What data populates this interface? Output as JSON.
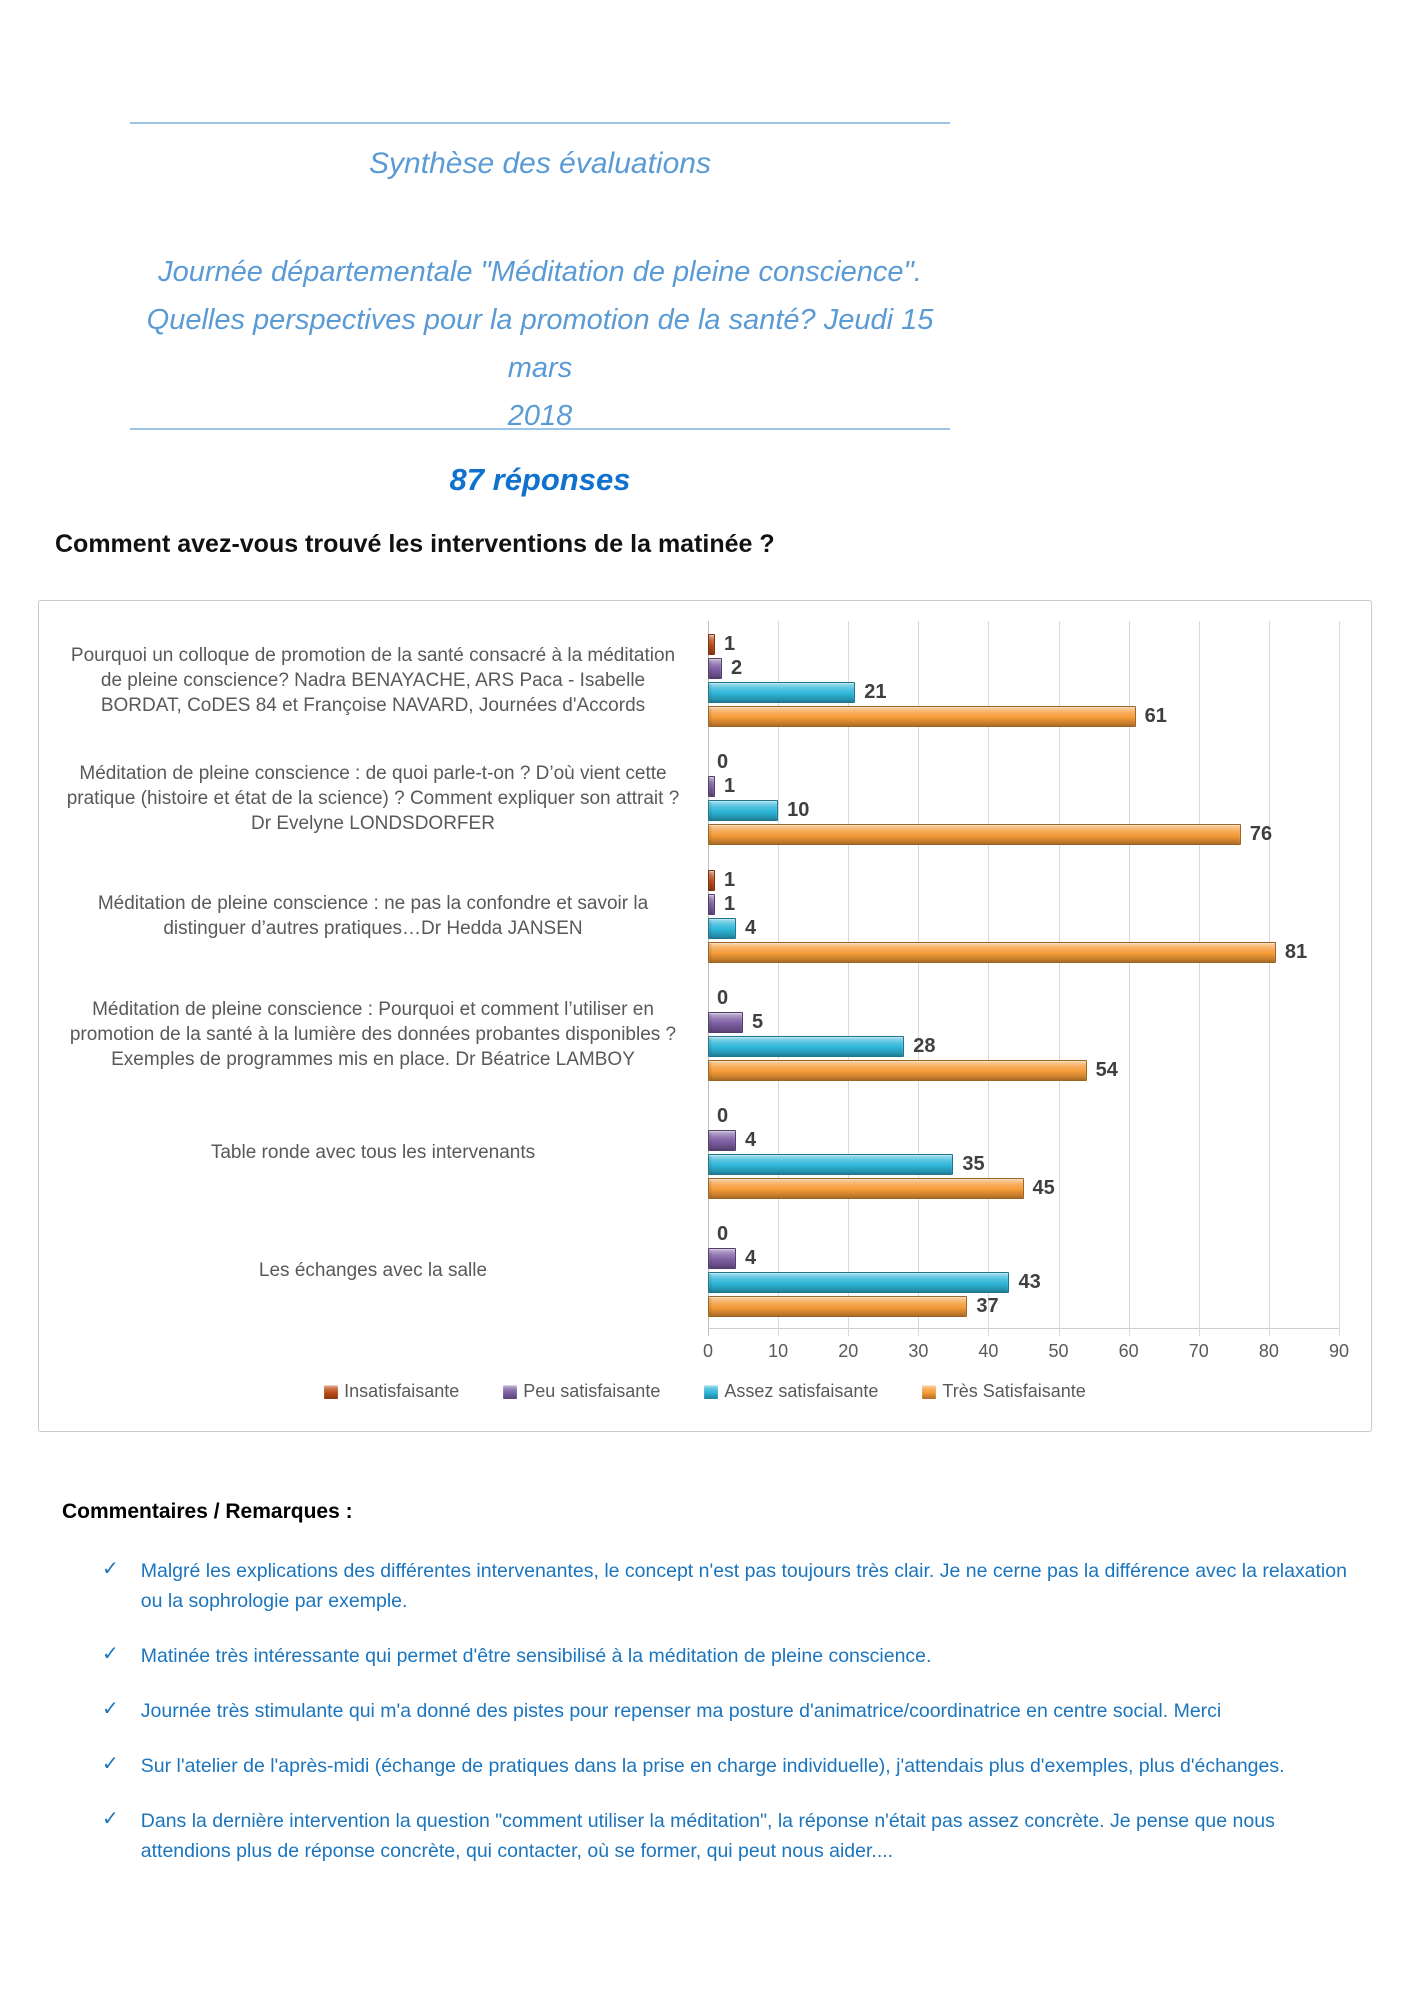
{
  "header": {
    "title": "Synthèse des évaluations",
    "subtitle_line1": "Journée départementale \"Méditation de pleine conscience\".",
    "subtitle_line2": "Quelles perspectives pour la promotion de la santé? Jeudi 15 mars",
    "subtitle_line3": "2018",
    "responses_label": "87 réponses",
    "question": "Comment avez-vous trouvé les interventions de la matinée ?"
  },
  "colors": {
    "title_blue": "#5B9BD5",
    "responses_blue": "#1072CE",
    "comment_blue": "#1B75BE",
    "divider_blue": "#9DC3E6",
    "category_gray": "#595959",
    "value_label_gray": "#3F3F3F"
  },
  "chart_data": {
    "type": "bar",
    "orientation": "horizontal",
    "title": "",
    "xlabel": "",
    "ylabel": "",
    "xlim": [
      0,
      90
    ],
    "xticks": [
      0,
      10,
      20,
      30,
      40,
      50,
      60,
      70,
      80,
      90
    ],
    "grid": true,
    "legend_position": "bottom",
    "categories": [
      "Pourquoi un colloque de promotion de la santé consacré à la méditation de pleine conscience? Nadra BENAYACHE,  ARS Paca - Isabelle BORDAT, CoDES 84 et Françoise NAVARD, Journées d'Accords",
      "Méditation de pleine conscience : de quoi parle-t-on ? D’où vient cette pratique (histoire et état de la science) ? Comment expliquer son attrait ? Dr Evelyne LONDSDORFER",
      "Méditation de pleine conscience : ne pas la confondre et savoir la distinguer d’autres pratiques…Dr Hedda JANSEN",
      "Méditation de pleine conscience : Pourquoi et comment l’utiliser en promotion de la santé à la lumière des données probantes disponibles ? Exemples de programmes mis en place. Dr Béatrice LAMBOY",
      "Table ronde avec tous les intervenants",
      "Les échanges avec la salle"
    ],
    "series": [
      {
        "name": "Insatisfaisante",
        "color": "#BE4B16",
        "values": [
          1,
          0,
          1,
          0,
          0,
          0
        ]
      },
      {
        "name": "Peu satisfaisante",
        "color": "#7E5FA4",
        "values": [
          2,
          1,
          1,
          5,
          4,
          4
        ]
      },
      {
        "name": "Assez satisfaisante",
        "color": "#2FB6D9",
        "values": [
          21,
          10,
          4,
          28,
          35,
          43
        ]
      },
      {
        "name": "Très Satisfaisante",
        "color": "#F59B38",
        "values": [
          61,
          76,
          81,
          54,
          45,
          37
        ]
      }
    ]
  },
  "comments": {
    "heading": "Commentaires / Remarques :",
    "check_icon": "✓",
    "items": [
      "Malgré les explications des différentes intervenantes, le concept n'est pas toujours très clair.  Je ne cerne pas la différence avec la relaxation ou la sophrologie par exemple.",
      "Matinée très intéressante qui permet d'être sensibilisé à la méditation de pleine conscience.",
      "Journée très stimulante qui m'a donné des pistes pour repenser ma posture d'animatrice/coordinatrice en centre social. Merci",
      "Sur l'atelier de l'après-midi (échange de pratiques dans la prise en charge individuelle), j'attendais plus d'exemples, plus d'échanges.",
      "Dans la dernière intervention la question \"comment utiliser la méditation\", la réponse n'était pas assez concrète. Je pense que nous attendions plus de réponse concrète, qui contacter, où se former, qui peut nous aider...."
    ]
  }
}
